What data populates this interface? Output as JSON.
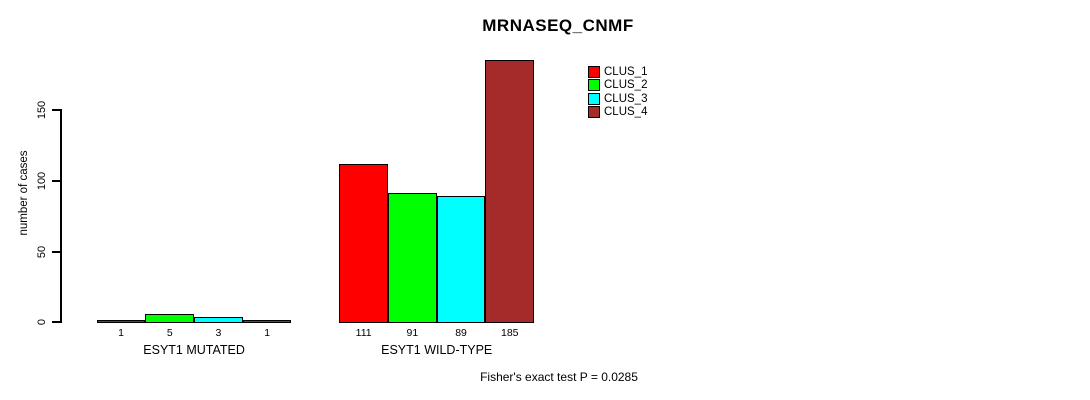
{
  "chart_data": {
    "type": "bar",
    "title": "MRNASEQ_CNMF",
    "ylabel": "number of cases",
    "xlabel": "",
    "ylim": [
      0,
      150
    ],
    "yticks": [
      0,
      50,
      100,
      150
    ],
    "categories": [
      "ESYT1 MUTATED",
      "ESYT1 WILD-TYPE"
    ],
    "series": [
      {
        "name": "CLUS_1",
        "color": "#ff0000",
        "values": [
          1,
          111
        ]
      },
      {
        "name": "CLUS_2",
        "color": "#00ff00",
        "values": [
          5,
          91
        ]
      },
      {
        "name": "CLUS_3",
        "color": "#00ffff",
        "values": [
          3,
          89
        ]
      },
      {
        "name": "CLUS_4",
        "color": "#a52a2a",
        "values": [
          1,
          185
        ]
      }
    ],
    "bar_value_labels": [
      [
        "1",
        "5",
        "3",
        "1"
      ],
      [
        "111",
        "91",
        "89",
        "185"
      ]
    ],
    "legend_position": "top-right",
    "grid": false,
    "annotation": "Fisher's exact test P = 0.0285"
  }
}
